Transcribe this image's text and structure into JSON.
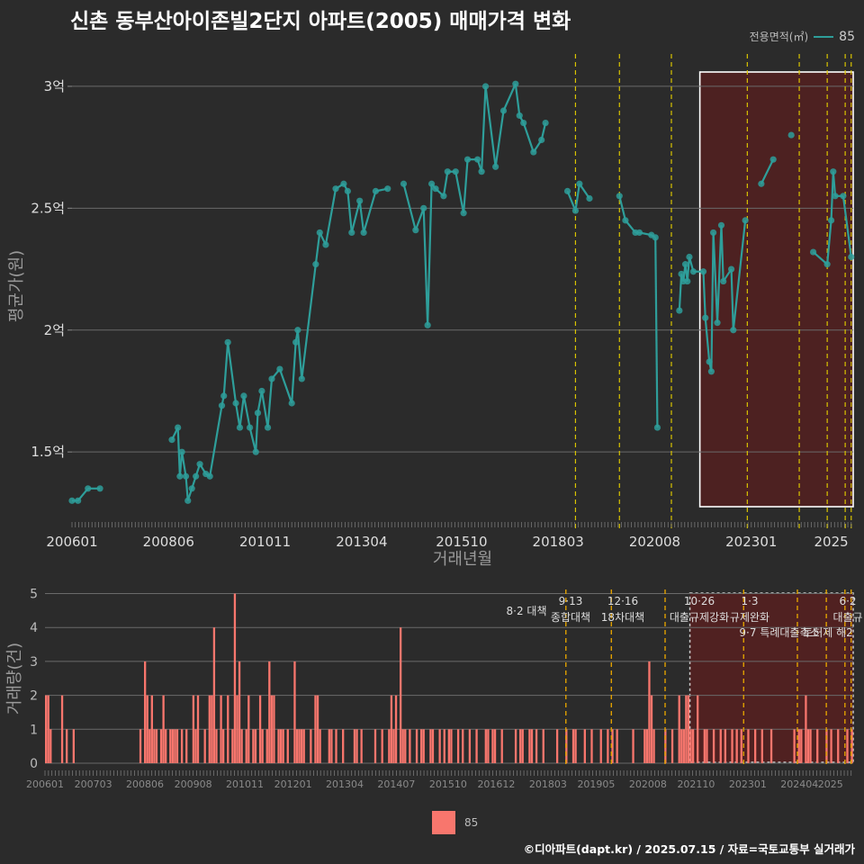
{
  "title": "신촌 동부산아이존빌2단지 아파트(2005) 매매가격 변화",
  "footer": "©디아파트(dapt.kr) / 2025.07.15 / 자료=국토교통부 실거래가",
  "legend_top": {
    "title": "전용면적(㎡)",
    "entry": "85",
    "color": "#2e9e9a"
  },
  "legend_bottom": {
    "entry": "85",
    "color": "#f8766d"
  },
  "chart_data": [
    {
      "type": "line",
      "name": "price",
      "title": "신촌 동부산아이존빌2단지 아파트(2005) 매매가격 변화",
      "xlabel": "거래년월",
      "ylabel": "평균가(원)",
      "x_ticks": [
        "200601",
        "200806",
        "201011",
        "201304",
        "201510",
        "201803",
        "202008",
        "202301",
        "2025"
      ],
      "y_ticks": [
        {
          "value": 1.5,
          "label": "1.5억"
        },
        {
          "value": 2.0,
          "label": "2억"
        },
        {
          "value": 2.5,
          "label": "2.5억"
        },
        {
          "value": 3.0,
          "label": "3억"
        }
      ],
      "ylim": [
        1.22,
        3.14
      ],
      "xlim": [
        2006.0,
        2025.55
      ],
      "series": [
        {
          "name": "85",
          "color": "#2e9e9a",
          "points": [
            [
              2006.0,
              1.3
            ],
            [
              2006.15,
              1.3
            ],
            [
              2006.4,
              1.35
            ],
            [
              2006.7,
              1.35
            ],
            [
              2008.5,
              1.55
            ],
            [
              2008.65,
              1.6
            ],
            [
              2008.7,
              1.4
            ],
            [
              2008.75,
              1.5
            ],
            [
              2008.85,
              1.4
            ],
            [
              2008.9,
              1.3
            ],
            [
              2009.0,
              1.35
            ],
            [
              2009.1,
              1.4
            ],
            [
              2009.2,
              1.45
            ],
            [
              2009.35,
              1.41
            ],
            [
              2009.45,
              1.4
            ],
            [
              2009.75,
              1.69
            ],
            [
              2009.8,
              1.73
            ],
            [
              2009.9,
              1.95
            ],
            [
              2010.1,
              1.7
            ],
            [
              2010.2,
              1.6
            ],
            [
              2010.3,
              1.73
            ],
            [
              2010.45,
              1.6
            ],
            [
              2010.6,
              1.5
            ],
            [
              2010.65,
              1.66
            ],
            [
              2010.75,
              1.75
            ],
            [
              2010.9,
              1.6
            ],
            [
              2011.0,
              1.8
            ],
            [
              2011.2,
              1.84
            ],
            [
              2011.5,
              1.7
            ],
            [
              2011.6,
              1.95
            ],
            [
              2011.65,
              2.0
            ],
            [
              2011.75,
              1.8
            ],
            [
              2012.1,
              2.27
            ],
            [
              2012.2,
              2.4
            ],
            [
              2012.35,
              2.35
            ],
            [
              2012.6,
              2.58
            ],
            [
              2012.8,
              2.6
            ],
            [
              2012.9,
              2.57
            ],
            [
              2013.0,
              2.4
            ],
            [
              2013.2,
              2.53
            ],
            [
              2013.3,
              2.4
            ],
            [
              2013.6,
              2.57
            ],
            [
              2013.9,
              2.58
            ],
            [
              2014.3,
              2.6
            ],
            [
              2014.6,
              2.41
            ],
            [
              2014.8,
              2.5
            ],
            [
              2014.9,
              2.02
            ],
            [
              2015.0,
              2.6
            ],
            [
              2015.1,
              2.58
            ],
            [
              2015.3,
              2.55
            ],
            [
              2015.4,
              2.65
            ],
            [
              2015.6,
              2.65
            ],
            [
              2015.8,
              2.48
            ],
            [
              2015.9,
              2.7
            ],
            [
              2016.15,
              2.7
            ],
            [
              2016.25,
              2.65
            ],
            [
              2016.35,
              3.0
            ],
            [
              2016.6,
              2.67
            ],
            [
              2016.8,
              2.9
            ],
            [
              2017.1,
              3.01
            ],
            [
              2017.2,
              2.88
            ],
            [
              2017.3,
              2.85
            ],
            [
              2017.55,
              2.73
            ],
            [
              2017.75,
              2.78
            ],
            [
              2017.85,
              2.85
            ],
            [
              2018.4,
              2.57
            ],
            [
              2018.6,
              2.49
            ],
            [
              2018.7,
              2.6
            ],
            [
              2018.95,
              2.54
            ],
            [
              2019.7,
              2.55
            ],
            [
              2019.85,
              2.45
            ],
            [
              2020.1,
              2.4
            ],
            [
              2020.2,
              2.4
            ],
            [
              2020.5,
              2.39
            ],
            [
              2020.6,
              2.38
            ],
            [
              2020.65,
              1.6
            ],
            [
              2021.2,
              2.08
            ],
            [
              2021.25,
              2.23
            ],
            [
              2021.3,
              2.2
            ],
            [
              2021.35,
              2.27
            ],
            [
              2021.4,
              2.2
            ],
            [
              2021.45,
              2.3
            ],
            [
              2021.55,
              2.24
            ],
            [
              2021.8,
              2.24
            ],
            [
              2021.85,
              2.05
            ],
            [
              2021.95,
              1.87
            ],
            [
              2022.0,
              1.83
            ],
            [
              2022.05,
              2.4
            ],
            [
              2022.15,
              2.03
            ],
            [
              2022.25,
              2.43
            ],
            [
              2022.3,
              2.2
            ],
            [
              2022.5,
              2.25
            ],
            [
              2022.55,
              2.0
            ],
            [
              2022.85,
              2.45
            ],
            [
              2023.25,
              2.6
            ],
            [
              2023.55,
              2.7
            ],
            [
              2024.0,
              2.8
            ],
            [
              2024.55,
              2.32
            ],
            [
              2024.9,
              2.27
            ],
            [
              2025.0,
              2.45
            ],
            [
              2025.05,
              2.65
            ],
            [
              2025.1,
              2.55
            ],
            [
              2025.3,
              2.55
            ],
            [
              2025.5,
              2.3
            ]
          ]
        }
      ],
      "policy_lines": [
        2018.6,
        2019.7,
        2021.0,
        2022.9,
        2024.2,
        2024.9,
        2025.35,
        2025.5
      ],
      "highlight_range": [
        2021.6,
        2025.55
      ]
    },
    {
      "type": "bar",
      "name": "volume",
      "xlabel": "",
      "ylabel": "거래량(건)",
      "x_ticks": [
        "200601",
        "200703",
        "200806",
        "200908",
        "201011",
        "201201",
        "201304",
        "201407",
        "201510",
        "201612",
        "201803",
        "201905",
        "202008",
        "202110",
        "202301",
        "202404",
        "2025"
      ],
      "y_ticks": [
        0,
        1,
        2,
        3,
        4,
        5
      ],
      "ylim": [
        0,
        5.2
      ],
      "xlim": [
        2006.0,
        2025.55
      ],
      "series": [
        {
          "name": "85",
          "color": "#f8766d",
          "values": [
            2,
            2,
            1,
            0,
            0,
            0,
            0,
            2,
            0,
            1,
            0,
            0,
            1,
            0,
            0,
            0,
            0,
            0,
            0,
            0,
            0,
            0,
            0,
            0,
            0,
            0,
            0,
            0,
            0,
            0,
            0,
            0,
            0,
            0,
            0,
            0,
            0,
            0,
            0,
            0,
            0,
            1,
            0,
            3,
            2,
            1,
            2,
            1,
            1,
            0,
            1,
            2,
            1,
            0,
            1,
            1,
            1,
            1,
            0,
            1,
            0,
            1,
            0,
            0,
            2,
            1,
            2,
            0,
            0,
            1,
            0,
            2,
            2,
            4,
            1,
            0,
            2,
            1,
            0,
            2,
            0,
            1,
            5,
            2,
            3,
            1,
            0,
            1,
            2,
            0,
            1,
            1,
            0,
            2,
            1,
            0,
            1,
            3,
            2,
            2,
            0,
            1,
            1,
            1,
            0,
            1,
            0,
            0,
            3,
            1,
            1,
            1,
            1,
            0,
            0,
            1,
            0,
            2,
            2,
            1,
            0,
            0,
            0,
            1,
            1,
            0,
            1,
            0,
            0,
            1,
            0,
            0,
            0,
            0,
            1,
            1,
            0,
            1,
            0,
            0,
            0,
            0,
            0,
            1,
            0,
            0,
            1,
            0,
            0,
            1,
            2,
            1,
            2,
            0,
            4,
            1,
            1,
            0,
            1,
            0,
            0,
            1,
            0,
            1,
            1,
            0,
            0,
            1,
            1,
            0,
            0,
            1,
            0,
            1,
            0,
            1,
            1,
            0,
            0,
            1,
            0,
            1,
            0,
            0,
            1,
            0,
            0,
            1,
            0,
            0,
            0,
            1,
            1,
            0,
            1,
            1,
            0,
            0,
            1,
            0,
            0,
            0,
            0,
            0,
            1,
            0,
            1,
            1,
            0,
            0,
            1,
            1,
            0,
            1,
            0,
            0,
            1,
            0,
            0,
            0,
            0,
            0,
            1,
            0,
            0,
            0,
            1,
            0,
            0,
            1,
            1,
            0,
            0,
            0,
            1,
            0,
            0,
            1,
            0,
            0,
            0,
            1,
            0,
            0,
            1,
            0,
            1,
            0,
            1,
            0,
            0,
            0,
            0,
            0,
            0,
            1,
            0,
            0,
            0,
            0,
            1,
            1,
            3,
            2,
            1,
            0,
            0,
            0,
            0,
            1,
            0,
            0,
            1,
            0,
            0,
            2,
            1,
            1,
            2,
            2,
            1,
            1,
            0,
            2,
            0,
            0,
            1,
            1,
            0,
            0,
            1,
            0,
            0,
            1,
            0,
            1,
            0,
            0,
            1,
            0,
            1,
            0,
            1,
            0,
            0,
            1,
            0,
            0,
            1,
            0,
            0,
            1,
            0,
            0,
            0,
            1,
            0,
            0,
            0,
            0,
            0,
            0,
            0,
            0,
            0,
            1,
            0,
            1,
            1,
            0,
            2,
            1,
            1,
            0,
            0,
            1,
            0,
            0,
            0,
            1,
            0,
            1,
            0,
            0,
            1,
            0,
            0,
            0,
            1,
            0,
            1
          ]
        }
      ],
      "policy_lines": [
        2018.6,
        2019.7,
        2021.0,
        2022.9,
        2024.2,
        2024.9,
        2025.35,
        2025.5
      ],
      "annotations": [
        {
          "date": "8·2",
          "text": "대책"
        },
        {
          "date": "9·13",
          "text": "종합대책"
        },
        {
          "date": "12·16",
          "text": "18차대책"
        },
        {
          "date": "10·26",
          "text": "대출규제강화"
        },
        {
          "date": "1·3",
          "text": "규제완화"
        },
        {
          "date": "9·7",
          "text": "특례대출축소"
        },
        {
          "date": "",
          "text": "토허제 해2"
        },
        {
          "date": "6·2",
          "text": "대출규"
        }
      ],
      "highlight_range": [
        2021.6,
        2025.55
      ]
    }
  ]
}
